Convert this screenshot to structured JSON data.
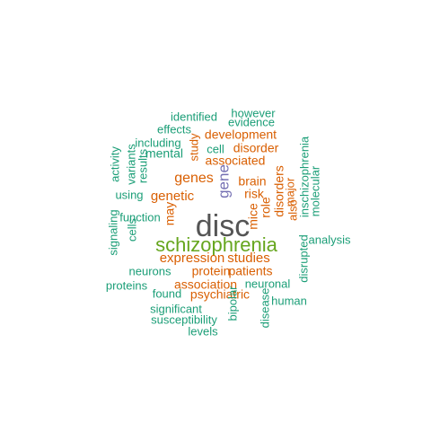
{
  "word_cloud": {
    "colors": {
      "teal": "#1b9e77",
      "orange": "#d95f02",
      "purple": "#7570b3",
      "green": "#66a61e",
      "gray": "#555555"
    },
    "words": [
      {
        "text": "disc",
        "color": "gray"
      },
      {
        "text": "schizophrenia",
        "color": "green"
      },
      {
        "text": "gene",
        "color": "purple"
      },
      {
        "text": "genes",
        "color": "orange"
      },
      {
        "text": "genetic",
        "color": "orange"
      },
      {
        "text": "expression",
        "color": "orange"
      },
      {
        "text": "studies",
        "color": "orange"
      },
      {
        "text": "protein",
        "color": "orange"
      },
      {
        "text": "patients",
        "color": "orange"
      },
      {
        "text": "association",
        "color": "orange"
      },
      {
        "text": "psychiatric",
        "color": "orange"
      },
      {
        "text": "development",
        "color": "orange"
      },
      {
        "text": "disorder",
        "color": "orange"
      },
      {
        "text": "associated",
        "color": "orange"
      },
      {
        "text": "brain",
        "color": "orange"
      },
      {
        "text": "risk",
        "color": "orange"
      },
      {
        "text": "study",
        "color": "orange"
      },
      {
        "text": "may",
        "color": "orange"
      },
      {
        "text": "mice",
        "color": "orange"
      },
      {
        "text": "role",
        "color": "orange"
      },
      {
        "text": "disorders",
        "color": "orange"
      },
      {
        "text": "also",
        "color": "orange"
      },
      {
        "text": "major",
        "color": "orange"
      },
      {
        "text": "identified",
        "color": "teal"
      },
      {
        "text": "however",
        "color": "teal"
      },
      {
        "text": "evidence",
        "color": "teal"
      },
      {
        "text": "effects",
        "color": "teal"
      },
      {
        "text": "including",
        "color": "teal"
      },
      {
        "text": "mental",
        "color": "teal"
      },
      {
        "text": "cell",
        "color": "teal"
      },
      {
        "text": "activity",
        "color": "teal"
      },
      {
        "text": "variants",
        "color": "teal"
      },
      {
        "text": "results",
        "color": "teal"
      },
      {
        "text": "using",
        "color": "teal"
      },
      {
        "text": "function",
        "color": "teal"
      },
      {
        "text": "signaling",
        "color": "teal"
      },
      {
        "text": "cells",
        "color": "teal"
      },
      {
        "text": "neurons",
        "color": "teal"
      },
      {
        "text": "proteins",
        "color": "teal"
      },
      {
        "text": "found",
        "color": "teal"
      },
      {
        "text": "neuronal",
        "color": "teal"
      },
      {
        "text": "human",
        "color": "teal"
      },
      {
        "text": "significant",
        "color": "teal"
      },
      {
        "text": "susceptibility",
        "color": "teal"
      },
      {
        "text": "levels",
        "color": "teal"
      },
      {
        "text": "bipolar",
        "color": "teal"
      },
      {
        "text": "disease",
        "color": "teal"
      },
      {
        "text": "disrupted",
        "color": "teal"
      },
      {
        "text": "inschizophrenia",
        "color": "teal"
      },
      {
        "text": "molecular",
        "color": "teal"
      },
      {
        "text": "analysis",
        "color": "teal"
      }
    ]
  }
}
